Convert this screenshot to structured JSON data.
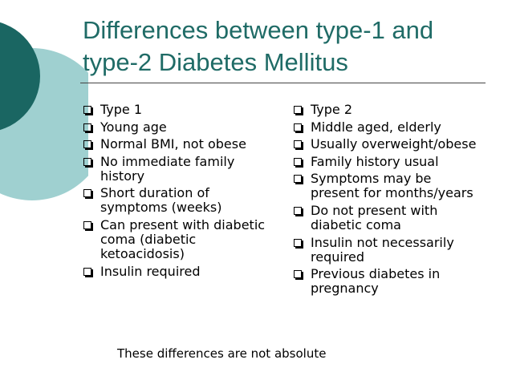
{
  "title": "Differences between type-1 and type-2 Diabetes Mellitus",
  "left_items": [
    "Type 1",
    "Young age",
    "Normal BMI, not obese",
    "No immediate family history",
    "Short duration of symptoms (weeks)",
    "Can present with diabetic coma (diabetic ketoacidosis)",
    "Insulin required"
  ],
  "right_items": [
    "Type 2",
    "Middle aged, elderly",
    "Usually overweight/obese",
    "Family history usual",
    "Symptoms may be present for months/years",
    "Do not present with diabetic coma",
    "Insulin not necessarily required",
    "Previous diabetes in pregnancy"
  ],
  "footer": "These differences are not absolute"
}
